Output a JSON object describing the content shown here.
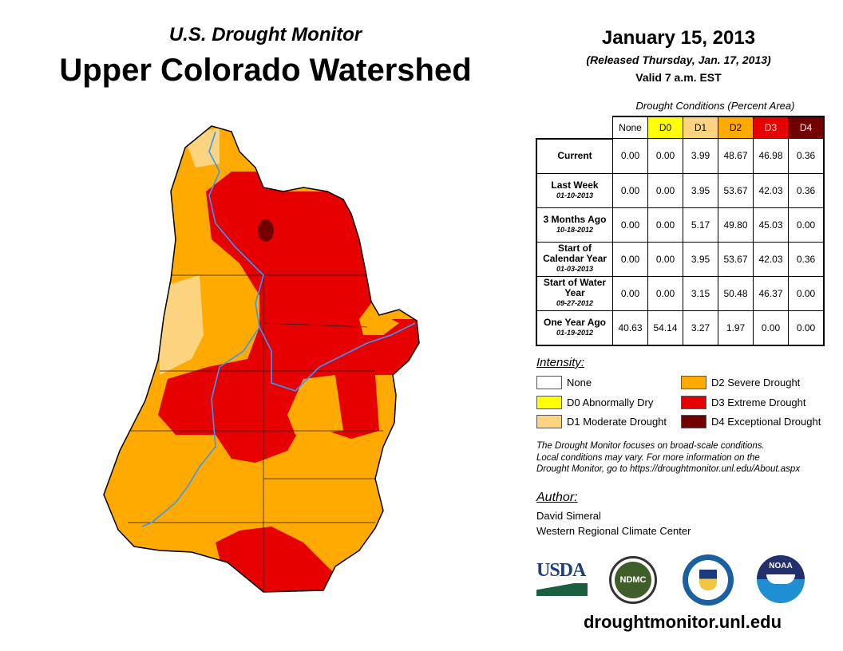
{
  "header": {
    "subtitle": "U.S. Drought Monitor",
    "title": "Upper Colorado Watershed",
    "date": "January 15, 2013",
    "released": "(Released Thursday, Jan. 17, 2013)",
    "valid": "Valid 7 a.m. EST"
  },
  "table": {
    "caption": "Drought Conditions (Percent Area)",
    "columns": [
      "None",
      "D0",
      "D1",
      "D2",
      "D3",
      "D4"
    ],
    "rows": [
      {
        "label": "Current",
        "date": "",
        "values": [
          "0.00",
          "0.00",
          "3.99",
          "48.67",
          "46.98",
          "0.36"
        ]
      },
      {
        "label": "Last Week",
        "date": "01-10-2013",
        "values": [
          "0.00",
          "0.00",
          "3.95",
          "53.67",
          "42.03",
          "0.36"
        ]
      },
      {
        "label": "3 Months Ago",
        "date": "10-18-2012",
        "values": [
          "0.00",
          "0.00",
          "5.17",
          "49.80",
          "45.03",
          "0.00"
        ]
      },
      {
        "label": "Start of Calendar Year",
        "date": "01-03-2013",
        "values": [
          "0.00",
          "0.00",
          "3.95",
          "53.67",
          "42.03",
          "0.36"
        ]
      },
      {
        "label": "Start of Water Year",
        "date": "09-27-2012",
        "values": [
          "0.00",
          "0.00",
          "3.15",
          "50.48",
          "46.37",
          "0.00"
        ]
      },
      {
        "label": "One Year Ago",
        "date": "01-19-2012",
        "values": [
          "40.63",
          "54.14",
          "3.27",
          "1.97",
          "0.00",
          "0.00"
        ]
      }
    ]
  },
  "legend": {
    "title": "Intensity:",
    "items": [
      {
        "label": "None",
        "color": "#ffffff"
      },
      {
        "label": "D0 Abnormally Dry",
        "color": "#ffff00"
      },
      {
        "label": "D1 Moderate Drought",
        "color": "#fcd37f"
      },
      {
        "label": "D2 Severe Drought",
        "color": "#ffaa00"
      },
      {
        "label": "D3 Extreme Drought",
        "color": "#e60000"
      },
      {
        "label": "D4 Exceptional Drought",
        "color": "#730000"
      }
    ]
  },
  "note": [
    "The Drought Monitor focuses on broad-scale conditions.",
    "Local conditions may vary. For more information on the",
    "Drought Monitor, go to https://droughtmonitor.unl.edu/About.aspx"
  ],
  "author": {
    "label": "Author:",
    "name": "David Simeral",
    "org": "Western Regional Climate Center"
  },
  "logos": {
    "usda": "USDA",
    "ndmc": "NDMC",
    "noaa": "NOAA"
  },
  "url": "droughtmonitor.unl.edu"
}
